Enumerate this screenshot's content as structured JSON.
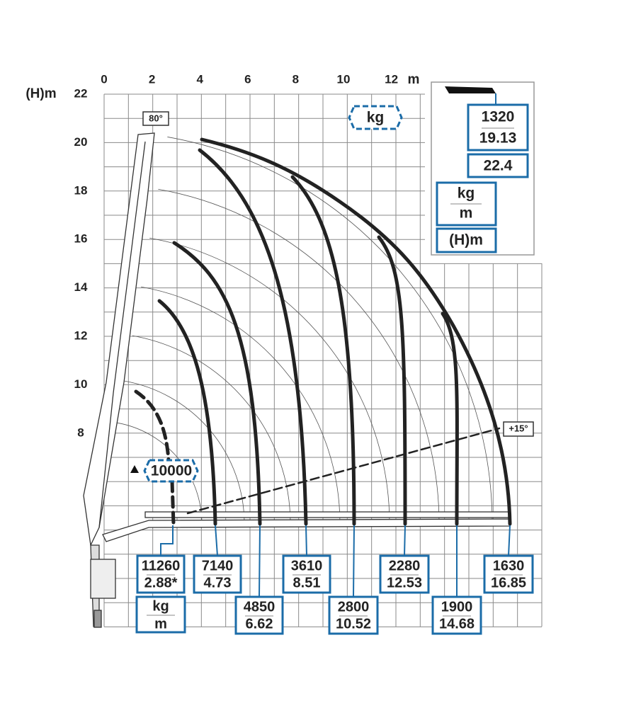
{
  "axis": {
    "x_ticks": [
      0,
      2,
      4,
      6,
      8,
      10,
      12
    ],
    "x_unit": "m",
    "y_unit": "(H)m",
    "y_ticks": [
      22,
      20,
      18,
      16,
      14,
      12,
      10,
      8
    ]
  },
  "angle_top": "80°",
  "angle_low": "+15°",
  "unit_badge": "kg",
  "max_load": "10000",
  "legend": {
    "load": "1320",
    "height": "19.13",
    "reach": "22.4",
    "kg": "kg",
    "m": "m",
    "height_unit": "(H)m"
  },
  "loads": [
    {
      "kg": "11260",
      "m": "2.88*"
    },
    {
      "kg": "7140",
      "m": "4.73"
    },
    {
      "kg": "4850",
      "m": "6.62"
    },
    {
      "kg": "3610",
      "m": "8.51"
    },
    {
      "kg": "2800",
      "m": "10.52"
    },
    {
      "kg": "2280",
      "m": "12.53"
    },
    {
      "kg": "1900",
      "m": "14.68"
    },
    {
      "kg": "1630",
      "m": "16.85"
    }
  ],
  "footer_units": {
    "kg": "kg",
    "m": "m"
  }
}
